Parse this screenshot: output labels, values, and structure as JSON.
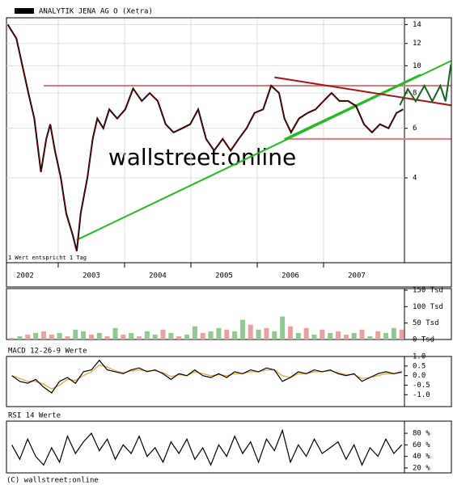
{
  "chart_data": [
    {
      "type": "line",
      "legend": "ANALYTIK JENA AG O (Xetra)",
      "note": "1 Wert entspricht 1 Tag",
      "watermark": "wallstreet:online",
      "log_scale": true,
      "grid": true,
      "color": "#000000",
      "trace_color": "#8b0000",
      "xlim": [
        2002.22,
        2008.22
      ],
      "xticks": [
        {
          "value": 2002,
          "label": "2002"
        },
        {
          "value": 2003,
          "label": "2003"
        },
        {
          "value": 2004,
          "label": "2004"
        },
        {
          "value": 2005,
          "label": "2005"
        },
        {
          "value": 2006,
          "label": "2006"
        },
        {
          "value": 2007,
          "label": "2007"
        }
      ],
      "ylim": [
        2.0,
        14.8
      ],
      "yticks": [
        14,
        12,
        10,
        8,
        6,
        4
      ],
      "x": [
        2002.24,
        2002.37,
        2002.46,
        2002.55,
        2002.64,
        2002.74,
        2002.82,
        2002.88,
        2002.95,
        2003.04,
        2003.12,
        2003.22,
        2003.28,
        2003.34,
        2003.44,
        2003.52,
        2003.59,
        2003.68,
        2003.77,
        2003.89,
        2004.01,
        2004.13,
        2004.26,
        2004.38,
        2004.5,
        2004.62,
        2004.74,
        2004.87,
        2004.99,
        2005.11,
        2005.23,
        2005.35,
        2005.48,
        2005.6,
        2005.72,
        2005.84,
        2005.96,
        2006.09,
        2006.21,
        2006.33,
        2006.41,
        2006.51,
        2006.63,
        2006.76,
        2006.88,
        2007.0,
        2007.12,
        2007.24,
        2007.37,
        2007.49,
        2007.61,
        2007.73,
        2007.85,
        2007.98,
        2008.1,
        2008.2
      ],
      "values": [
        14,
        12.5,
        10,
        8,
        6.5,
        4.2,
        5.5,
        6.2,
        5,
        4,
        3,
        2.5,
        2.2,
        3,
        4,
        5.5,
        6.5,
        6,
        7,
        6.5,
        7,
        8.3,
        7.5,
        8,
        7.5,
        6.2,
        5.8,
        6,
        6.2,
        7,
        5.5,
        5,
        5.5,
        5,
        5.5,
        6,
        6.8,
        7,
        8.5,
        8,
        6.5,
        5.8,
        6.5,
        6.8,
        7,
        7.5,
        8,
        7.5,
        7.5,
        7.2,
        6.2,
        5.8,
        6.2,
        6,
        6.8,
        7
      ],
      "overlays": [
        {
          "color": "#e07a7a",
          "x": [
            2002.78,
            2008.92
          ],
          "values": [
            8.5,
            8.5
          ]
        },
        {
          "color": "#e07a7a",
          "x": [
            2006.45,
            2008.92
          ],
          "values": [
            5.5,
            5.5
          ]
        },
        {
          "color": "#22bb22",
          "x": [
            2003.28,
            2008.92
          ],
          "values": [
            2.41,
            10.4
          ]
        },
        {
          "color": "#22bb22",
          "x": [
            2006.41,
            2008.46
          ],
          "values": [
            5.49,
            9.3
          ]
        },
        {
          "color": "#aa1111",
          "x": [
            2006.26,
            2008.92
          ],
          "values": [
            9.1,
            7.24
          ]
        },
        {
          "color": "#116622",
          "x": [
            2008.15,
            2008.27,
            2008.39,
            2008.52,
            2008.64,
            2008.76,
            2008.84,
            2008.92
          ],
          "values": [
            7.24,
            8.26,
            7.48,
            8.5,
            7.48,
            8.5,
            7.48,
            10.1
          ]
        }
      ]
    },
    {
      "type": "bar",
      "ylim": [
        0,
        155
      ],
      "yticks": [
        {
          "value": 150,
          "label": "150 Tsd"
        },
        {
          "value": 100,
          "label": "100 Tsd"
        },
        {
          "value": 50,
          "label": "50 Tsd"
        },
        {
          "value": 0,
          "label": "0 Tsd"
        }
      ],
      "x": [
        2002.3,
        2002.42,
        2002.54,
        2002.66,
        2002.78,
        2002.9,
        2003.02,
        2003.14,
        2003.26,
        2003.38,
        2003.5,
        2003.62,
        2003.74,
        2003.86,
        2003.98,
        2004.1,
        2004.22,
        2004.34,
        2004.46,
        2004.58,
        2004.7,
        2004.82,
        2004.94,
        2005.06,
        2005.18,
        2005.3,
        2005.42,
        2005.54,
        2005.66,
        2005.78,
        2005.9,
        2006.02,
        2006.14,
        2006.26,
        2006.38,
        2006.5,
        2006.62,
        2006.74,
        2006.86,
        2006.98,
        2007.1,
        2007.22,
        2007.34,
        2007.46,
        2007.58,
        2007.7,
        2007.82,
        2007.94,
        2008.06,
        2008.18
      ],
      "values": [
        5,
        10,
        15,
        20,
        25,
        15,
        20,
        10,
        30,
        25,
        15,
        20,
        10,
        35,
        15,
        20,
        10,
        25,
        15,
        30,
        20,
        10,
        15,
        40,
        20,
        25,
        35,
        30,
        25,
        60,
        45,
        30,
        35,
        25,
        70,
        40,
        20,
        35,
        15,
        30,
        20,
        25,
        15,
        20,
        30,
        10,
        25,
        20,
        35,
        30
      ],
      "bar_colors": [
        "#e8a0a0",
        "#90c890",
        "#e8a0a0",
        "#90c890",
        "#e8a0a0",
        "#e8a0a0",
        "#90c890",
        "#e8a0a0",
        "#90c890",
        "#90c890",
        "#e8a0a0",
        "#90c890",
        "#e8a0a0",
        "#90c890",
        "#e8a0a0",
        "#90c890",
        "#e8a0a0",
        "#90c890",
        "#90c890",
        "#e8a0a0",
        "#90c890",
        "#e8a0a0",
        "#90c890",
        "#90c890",
        "#e8a0a0",
        "#90c890",
        "#90c890",
        "#e8a0a0",
        "#90c890",
        "#90c890",
        "#e8a0a0",
        "#90c890",
        "#e8a0a0",
        "#90c890",
        "#90c890",
        "#e8a0a0",
        "#90c890",
        "#e8a0a0",
        "#90c890",
        "#e8a0a0",
        "#90c890",
        "#e8a0a0",
        "#e8a0a0",
        "#90c890",
        "#e8a0a0",
        "#90c890",
        "#e8a0a0",
        "#90c890",
        "#90c890",
        "#e8a0a0"
      ]
    },
    {
      "type": "line",
      "label": "MACD 12-26-9 Werte",
      "ylim": [
        -1.62,
        1.0
      ],
      "yticks": [
        {
          "value": 1.0,
          "label": "1.0"
        },
        {
          "value": 0.5,
          "label": "0.5"
        },
        {
          "value": 0.0,
          "label": "0.0"
        },
        {
          "value": -0.5,
          "label": "-0.5"
        },
        {
          "value": -1.0,
          "label": "-1.0"
        }
      ],
      "x": [
        2002.3,
        2002.42,
        2002.54,
        2002.66,
        2002.78,
        2002.9,
        2003.02,
        2003.14,
        2003.26,
        2003.38,
        2003.5,
        2003.62,
        2003.74,
        2003.86,
        2003.98,
        2004.1,
        2004.22,
        2004.34,
        2004.46,
        2004.58,
        2004.7,
        2004.82,
        2004.94,
        2005.06,
        2005.18,
        2005.3,
        2005.42,
        2005.54,
        2005.66,
        2005.78,
        2005.9,
        2006.02,
        2006.14,
        2006.26,
        2006.38,
        2006.5,
        2006.62,
        2006.74,
        2006.86,
        2006.98,
        2007.1,
        2007.22,
        2007.34,
        2007.46,
        2007.58,
        2007.7,
        2007.82,
        2007.94,
        2008.06,
        2008.18
      ],
      "series": [
        {
          "color": "#e8a030",
          "values": [
            0,
            -0.15,
            -0.3,
            -0.3,
            -0.45,
            -0.7,
            -0.5,
            -0.2,
            -0.25,
            0,
            0.2,
            0.55,
            0.45,
            0.25,
            0.15,
            0.25,
            0.3,
            0.25,
            0.25,
            0.15,
            -0.05,
            0.05,
            0,
            0.2,
            0.1,
            0,
            0.05,
            0,
            0.1,
            0.1,
            0.2,
            0.2,
            0.3,
            0.3,
            0,
            -0.1,
            0.1,
            0.1,
            0.2,
            0.2,
            0.25,
            0.15,
            0.05,
            0.05,
            -0.15,
            -0.1,
            0,
            0.1,
            0.1,
            0.15
          ]
        },
        {
          "color": "#000000",
          "values": [
            0,
            -0.3,
            -0.4,
            -0.2,
            -0.6,
            -0.9,
            -0.3,
            -0.1,
            -0.4,
            0.2,
            0.3,
            0.8,
            0.3,
            0.2,
            0.1,
            0.3,
            0.4,
            0.2,
            0.3,
            0.1,
            -0.2,
            0.1,
            0,
            0.3,
            0,
            -0.1,
            0.1,
            -0.1,
            0.2,
            0.1,
            0.3,
            0.2,
            0.4,
            0.3,
            -0.3,
            -0.1,
            0.2,
            0.1,
            0.3,
            0.2,
            0.3,
            0.1,
            0,
            0.1,
            -0.3,
            -0.1,
            0.1,
            0.2,
            0.1,
            0.2
          ]
        }
      ]
    },
    {
      "type": "line",
      "label": "RSI 14 Werte",
      "ylim": [
        11.5,
        101
      ],
      "yticks": [
        {
          "value": 80,
          "label": "80 %"
        },
        {
          "value": 60,
          "label": "60 %"
        },
        {
          "value": 40,
          "label": "40 %"
        },
        {
          "value": 20,
          "label": "20 %"
        }
      ],
      "x": [
        2002.3,
        2002.42,
        2002.54,
        2002.66,
        2002.78,
        2002.9,
        2003.02,
        2003.14,
        2003.26,
        2003.38,
        2003.5,
        2003.62,
        2003.74,
        2003.86,
        2003.98,
        2004.1,
        2004.22,
        2004.34,
        2004.46,
        2004.58,
        2004.7,
        2004.82,
        2004.94,
        2005.06,
        2005.18,
        2005.3,
        2005.42,
        2005.54,
        2005.66,
        2005.78,
        2005.9,
        2006.02,
        2006.14,
        2006.26,
        2006.38,
        2006.5,
        2006.62,
        2006.74,
        2006.86,
        2006.98,
        2007.1,
        2007.22,
        2007.34,
        2007.46,
        2007.58,
        2007.7,
        2007.82,
        2007.94,
        2008.06,
        2008.18
      ],
      "series": [
        {
          "color": "#000000",
          "values": [
            60,
            35,
            70,
            40,
            25,
            55,
            30,
            75,
            45,
            65,
            80,
            50,
            70,
            35,
            60,
            45,
            75,
            40,
            55,
            30,
            65,
            45,
            70,
            35,
            55,
            25,
            60,
            40,
            75,
            45,
            65,
            30,
            70,
            50,
            85,
            30,
            60,
            40,
            70,
            45,
            55,
            65,
            35,
            60,
            25,
            55,
            40,
            70,
            45,
            60
          ]
        }
      ]
    }
  ],
  "footer": "(C) wallstreet:online"
}
